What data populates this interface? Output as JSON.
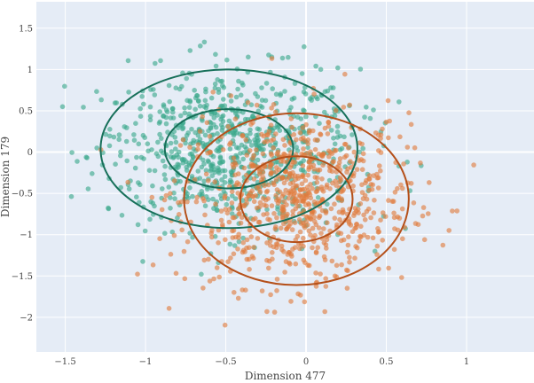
{
  "chart_data": {
    "type": "scatter",
    "xlabel": "Dimension 477",
    "ylabel": "Dimension 179",
    "xlim": [
      -1.68,
      1.42
    ],
    "ylim": [
      -2.42,
      1.82
    ],
    "xticks": [
      -1.5,
      -1,
      -0.5,
      0,
      0.5,
      1
    ],
    "xtick_labels": [
      "−1.5",
      "−1",
      "−0.5",
      "0",
      "0.5",
      "1"
    ],
    "yticks": [
      -2,
      -1.5,
      -1,
      -0.5,
      0,
      0.5,
      1,
      1.5
    ],
    "ytick_labels": [
      "−2",
      "−1.5",
      "−1",
      "−0.5",
      "0",
      "0.5",
      "1",
      "1.5"
    ],
    "grid": true,
    "legend": "none",
    "series": [
      {
        "color": "#3aa88a",
        "center": [
          -0.47,
          0.03
        ],
        "std": [
          0.4,
          0.48
        ],
        "count": 800,
        "range_x": [
          -1.52,
          0.86
        ],
        "range_y": [
          -1.58,
          1.57
        ],
        "ellipses": [
          {
            "center": [
              -0.48,
              0.04
            ],
            "radii": [
              0.4,
              0.48
            ]
          },
          {
            "center": [
              -0.48,
              0.04
            ],
            "radii": [
              0.8,
              0.96
            ]
          }
        ],
        "ellipse_color": "#17705a"
      },
      {
        "color": "#e07b3c",
        "center": [
          -0.06,
          -0.57
        ],
        "std": [
          0.35,
          0.52
        ],
        "count": 800,
        "range_x": [
          -1.3,
          1.25
        ],
        "range_y": [
          -2.18,
          1.15
        ],
        "ellipses": [
          {
            "center": [
              -0.06,
              -0.57
            ],
            "radii": [
              0.35,
              0.52
            ]
          },
          {
            "center": [
              -0.06,
              -0.57
            ],
            "radii": [
              0.7,
              1.04
            ]
          }
        ],
        "ellipse_color": "#b5501a"
      }
    ]
  }
}
